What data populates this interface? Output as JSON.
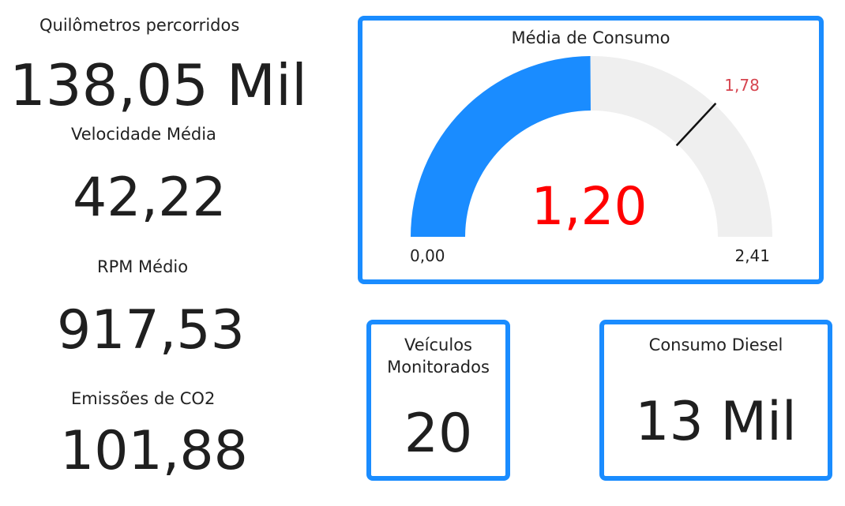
{
  "kpis": {
    "km": {
      "label": "Quilômetros percorridos",
      "value": "138,05 Mil"
    },
    "speed": {
      "label": "Velocidade Média",
      "value": "42,22"
    },
    "rpm": {
      "label": "RPM Médio",
      "value": "917,53"
    },
    "co2": {
      "label": "Emissões de CO2",
      "value": "101,88"
    }
  },
  "gauge": {
    "title": "Média de Consumo",
    "value_label": "1,20",
    "min_label": "0,00",
    "max_label": "2,41",
    "target_label": "1,78",
    "value": 1.2,
    "min": 0,
    "max": 2.41,
    "target": 1.78,
    "colors": {
      "fill": "#1a8cff",
      "track": "#efefef",
      "value_text": "#ff0000",
      "target_text": "#d64550",
      "border": "#1a8cff"
    }
  },
  "vehicles": {
    "title_line1": "Veículos",
    "title_line2": "Monitorados",
    "value": "20"
  },
  "diesel": {
    "title": "Consumo Diesel",
    "value": "13 Mil"
  }
}
